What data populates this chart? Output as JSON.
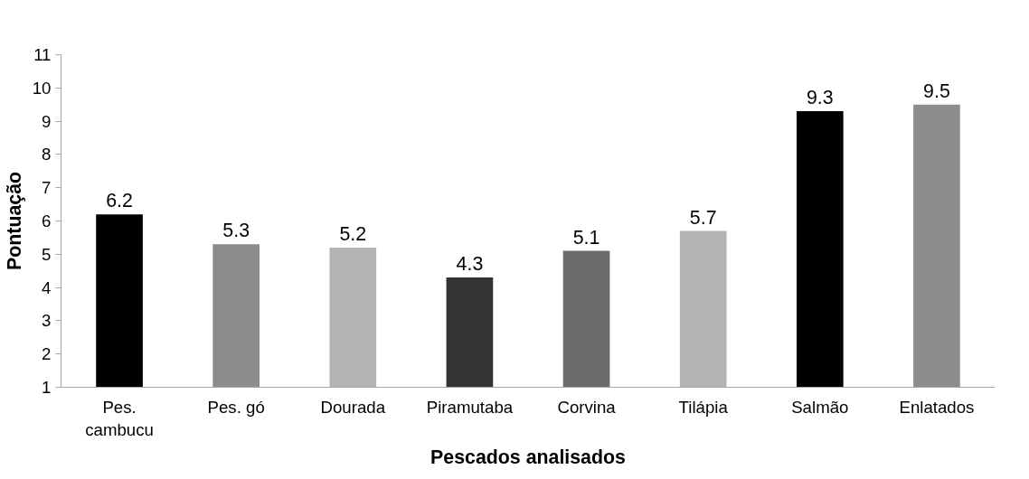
{
  "chart_data": {
    "type": "bar",
    "xlabel": "Pescados analisados",
    "ylabel": "Pontuação",
    "categories": [
      "Pes.\ncambucu",
      "Pes. gó",
      "Dourada",
      "Piramutaba",
      "Corvina",
      "Tilápia",
      "Salmão",
      "Enlatados"
    ],
    "values": [
      6.2,
      5.3,
      5.2,
      4.3,
      5.1,
      5.7,
      9.3,
      9.5
    ],
    "colors": [
      "#000000",
      "#8c8c8c",
      "#b3b3b3",
      "#333333",
      "#6b6b6b",
      "#b3b3b3",
      "#000000",
      "#8c8c8c"
    ],
    "ylim": [
      1,
      11
    ],
    "yticks": [
      1,
      2,
      3,
      4,
      5,
      6,
      7,
      8,
      9,
      10,
      11
    ],
    "grid": false,
    "data_labels": true
  }
}
